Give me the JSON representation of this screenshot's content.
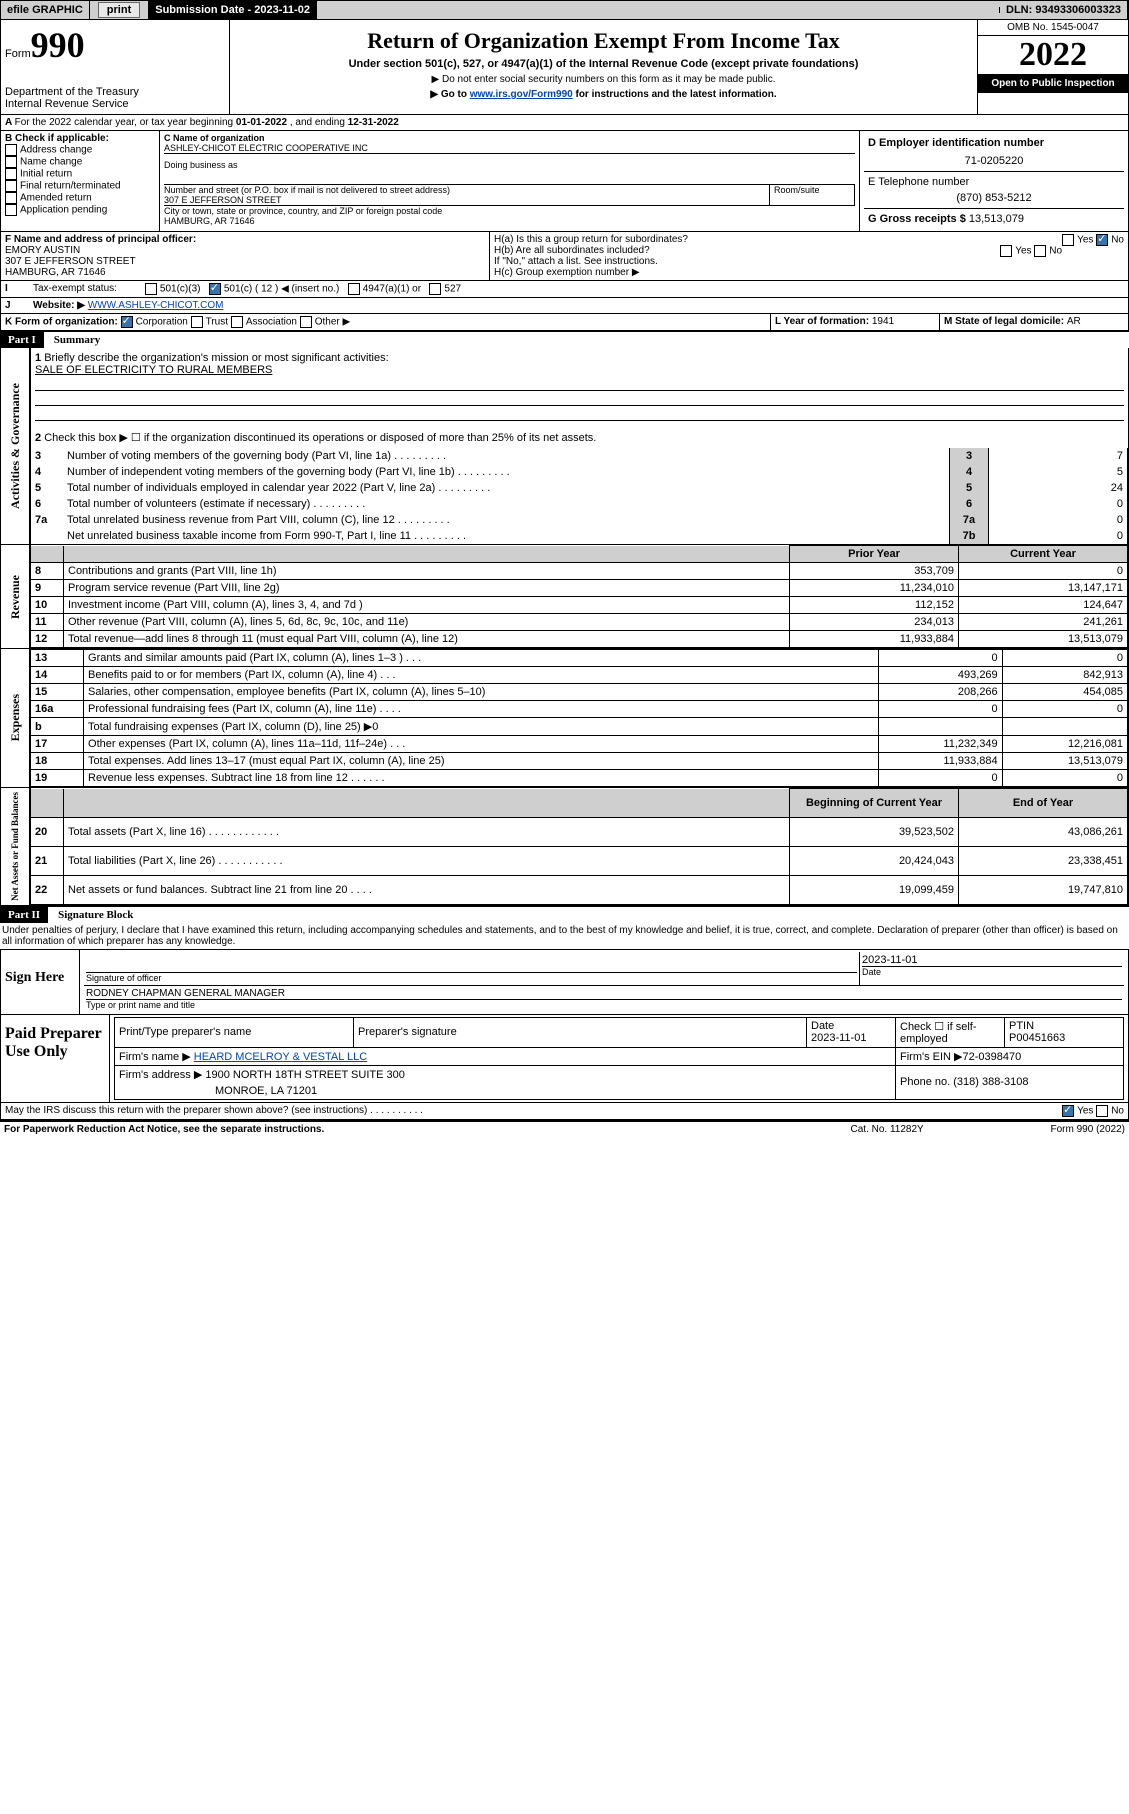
{
  "header_bar": {
    "efile": "efile GRAPHIC",
    "print": "print",
    "sub_label": "Submission Date - ",
    "sub_date": "2023-11-02",
    "dln_label": "DLN: ",
    "dln": "93493306003323"
  },
  "form": {
    "form_word": "Form",
    "form_no": "990",
    "title": "Return of Organization Exempt From Income Tax",
    "sub1": "Under section 501(c), 527, or 4947(a)(1) of the Internal Revenue Code (except private foundations)",
    "sub2": "▶ Do not enter social security numbers on this form as it may be made public.",
    "sub3_pre": "▶ Go to ",
    "sub3_link": "www.irs.gov/Form990",
    "sub3_post": " for instructions and the latest information.",
    "dept": "Department of the Treasury",
    "irs": "Internal Revenue Service",
    "omb_label": "OMB No. ",
    "omb": "1545-0047",
    "year": "2022",
    "otp": "Open to Public Inspection"
  },
  "A": {
    "text_pre": "For the 2022 calendar year, or tax year beginning ",
    "begin": "01-01-2022",
    "mid": " , and ending ",
    "end": "12-31-2022"
  },
  "B": {
    "hdr": "B Check if applicable:",
    "addr": "Address change",
    "name": "Name change",
    "init": "Initial return",
    "final": "Final return/terminated",
    "amend": "Amended return",
    "app": "Application pending"
  },
  "C": {
    "name_lbl": "C Name of organization",
    "name": "ASHLEY-CHICOT ELECTRIC COOPERATIVE INC",
    "dba_lbl": "Doing business as",
    "dba": "",
    "street_lbl": "Number and street (or P.O. box if mail is not delivered to street address)",
    "room_lbl": "Room/suite",
    "street": "307 E JEFFERSON STREET",
    "city_lbl": "City or town, state or province, country, and ZIP or foreign postal code",
    "city": "HAMBURG, AR  71646"
  },
  "D": {
    "lbl": "D Employer identification number",
    "ein": "71-0205220"
  },
  "E": {
    "lbl": "E Telephone number",
    "phone": "(870) 853-5212"
  },
  "G": {
    "lbl": "G Gross receipts $ ",
    "val": "13,513,079"
  },
  "F": {
    "lbl": "F  Name and address of principal officer:",
    "name": "EMORY AUSTIN",
    "street": "307 E JEFFERSON STREET",
    "city": "HAMBURG, AR  71646"
  },
  "H": {
    "a": "H(a)  Is this a group return for subordinates?",
    "b": "H(b)  Are all subordinates included?",
    "bnote": "If \"No,\" attach a list. See instructions.",
    "c": "H(c)  Group exemption number ▶",
    "yes": "Yes",
    "no": "No"
  },
  "I": {
    "lbl": "Tax-exempt status:",
    "c3": "501(c)(3)",
    "c": "501(c) ( 12 ) ◀ (insert no.)",
    "a1": "4947(a)(1) or",
    "527": "527"
  },
  "J": {
    "lbl": "Website: ▶",
    "url": "WWW.ASHLEY-CHICOT.COM"
  },
  "K": {
    "lbl": "K Form of organization:",
    "corp": "Corporation",
    "trust": "Trust",
    "assoc": "Association",
    "other": "Other ▶"
  },
  "L": {
    "lbl": "L Year of formation: ",
    "val": "1941"
  },
  "M": {
    "lbl": "M State of legal domicile: ",
    "val": "AR"
  },
  "part1": {
    "hdr": "Part I",
    "title": "Summary",
    "tab1": "Activities & Governance",
    "tab2": "Revenue",
    "tab3": "Expenses",
    "tab4": "Net Assets or Fund Balances",
    "l1": "Briefly describe the organization's mission or most significant activities:",
    "l1v": "SALE OF ELECTRICITY TO RURAL MEMBERS",
    "l2": "Check this box ▶ ☐  if the organization discontinued its operations or disposed of more than 25% of its net assets.",
    "rows": [
      {
        "n": "3",
        "t": "Number of voting members of the governing body (Part VI, line 1a)",
        "c": "3",
        "v": "7"
      },
      {
        "n": "4",
        "t": "Number of independent voting members of the governing body (Part VI, line 1b)",
        "c": "4",
        "v": "5"
      },
      {
        "n": "5",
        "t": "Total number of individuals employed in calendar year 2022 (Part V, line 2a)",
        "c": "5",
        "v": "24"
      },
      {
        "n": "6",
        "t": "Total number of volunteers (estimate if necessary)",
        "c": "6",
        "v": "0"
      },
      {
        "n": "7a",
        "t": "Total unrelated business revenue from Part VIII, column (C), line 12",
        "c": "7a",
        "v": "0"
      },
      {
        "n": "",
        "t": "Net unrelated business taxable income from Form 990-T, Part I, line 11",
        "c": "7b",
        "v": "0"
      }
    ],
    "col_prior": "Prior Year",
    "col_curr": "Current Year",
    "rev": [
      {
        "n": "8",
        "t": "Contributions and grants (Part VIII, line 1h)",
        "p": "353,709",
        "c": "0"
      },
      {
        "n": "9",
        "t": "Program service revenue (Part VIII, line 2g)",
        "p": "11,234,010",
        "c": "13,147,171"
      },
      {
        "n": "10",
        "t": "Investment income (Part VIII, column (A), lines 3, 4, and 7d )",
        "p": "112,152",
        "c": "124,647"
      },
      {
        "n": "11",
        "t": "Other revenue (Part VIII, column (A), lines 5, 6d, 8c, 9c, 10c, and 11e)",
        "p": "234,013",
        "c": "241,261"
      },
      {
        "n": "12",
        "t": "Total revenue—add lines 8 through 11 (must equal Part VIII, column (A), line 12)",
        "p": "11,933,884",
        "c": "13,513,079"
      }
    ],
    "exp": [
      {
        "n": "13",
        "t": "Grants and similar amounts paid (Part IX, column (A), lines 1–3 )   .    .    .",
        "p": "0",
        "c": "0"
      },
      {
        "n": "14",
        "t": "Benefits paid to or for members (Part IX, column (A), line 4)   .    .    .",
        "p": "493,269",
        "c": "842,913"
      },
      {
        "n": "15",
        "t": "Salaries, other compensation, employee benefits (Part IX, column (A), lines 5–10)",
        "p": "208,266",
        "c": "454,085"
      },
      {
        "n": "16a",
        "t": "Professional fundraising fees (Part IX, column (A), line 11e)   .    .    .    .",
        "p": "0",
        "c": "0"
      },
      {
        "n": "b",
        "t": "Total fundraising expenses (Part IX, column (D), line 25) ▶0",
        "p": "",
        "c": ""
      },
      {
        "n": "17",
        "t": "Other expenses (Part IX, column (A), lines 11a–11d, 11f–24e)   .    .    .",
        "p": "11,232,349",
        "c": "12,216,081"
      },
      {
        "n": "18",
        "t": "Total expenses. Add lines 13–17 (must equal Part IX, column (A), line 25)",
        "p": "11,933,884",
        "c": "13,513,079"
      },
      {
        "n": "19",
        "t": "Revenue less expenses. Subtract line 18 from line 12   .    .    .    .    .    .",
        "p": "0",
        "c": "0"
      }
    ],
    "col_begin": "Beginning of Current Year",
    "col_end": "End of Year",
    "net": [
      {
        "n": "20",
        "t": "Total assets (Part X, line 16)   .    .    .    .    .    .    .    .    .    .    .    .",
        "p": "39,523,502",
        "c": "43,086,261"
      },
      {
        "n": "21",
        "t": "Total liabilities (Part X, line 26)   .    .    .    .    .    .    .    .    .    .    .",
        "p": "20,424,043",
        "c": "23,338,451"
      },
      {
        "n": "22",
        "t": "Net assets or fund balances. Subtract line 21 from line 20   .    .    .    .",
        "p": "19,099,459",
        "c": "19,747,810"
      }
    ]
  },
  "part2": {
    "hdr": "Part II",
    "title": "Signature Block",
    "decl": "Under penalties of perjury, I declare that I have examined this return, including accompanying schedules and statements, and to the best of my knowledge and belief, it is true, correct, and complete. Declaration of preparer (other than officer) is based on all information of which preparer has any knowledge.",
    "sign_here": "Sign Here",
    "sig_officer": "Signature of officer",
    "sig_date": "Date",
    "sig_date_v": "2023-11-01",
    "officer": "RODNEY CHAPMAN  GENERAL MANAGER",
    "officer_lbl": "Type or print name and title",
    "paid": "Paid Preparer Use Only",
    "prep_name_lbl": "Print/Type preparer's name",
    "prep_sig_lbl": "Preparer's signature",
    "date_lbl": "Date",
    "date_v": "2023-11-01",
    "self": "Check ☐ if self-employed",
    "ptin_lbl": "PTIN",
    "ptin": "P00451663",
    "firm_name_lbl": "Firm's name    ▶",
    "firm_name": "HEARD MCELROY & VESTAL LLC",
    "firm_ein_lbl": "Firm's EIN ▶",
    "firm_ein": "72-0398470",
    "firm_addr_lbl": "Firm's address ▶",
    "firm_addr1": "1900 NORTH 18TH STREET SUITE 300",
    "firm_addr2": "MONROE, LA  71201",
    "firm_phone_lbl": "Phone no. ",
    "firm_phone": "(318) 388-3108",
    "discuss": "May the IRS discuss this return with the preparer shown above? (see instructions)    .    .    .    .    .    .    .    .    .    .",
    "yes": "Yes",
    "no": "No"
  },
  "footer": {
    "pra": "For Paperwork Reduction Act Notice, see the separate instructions.",
    "cat": "Cat. No. 11282Y",
    "form": "Form 990 (2022)"
  }
}
